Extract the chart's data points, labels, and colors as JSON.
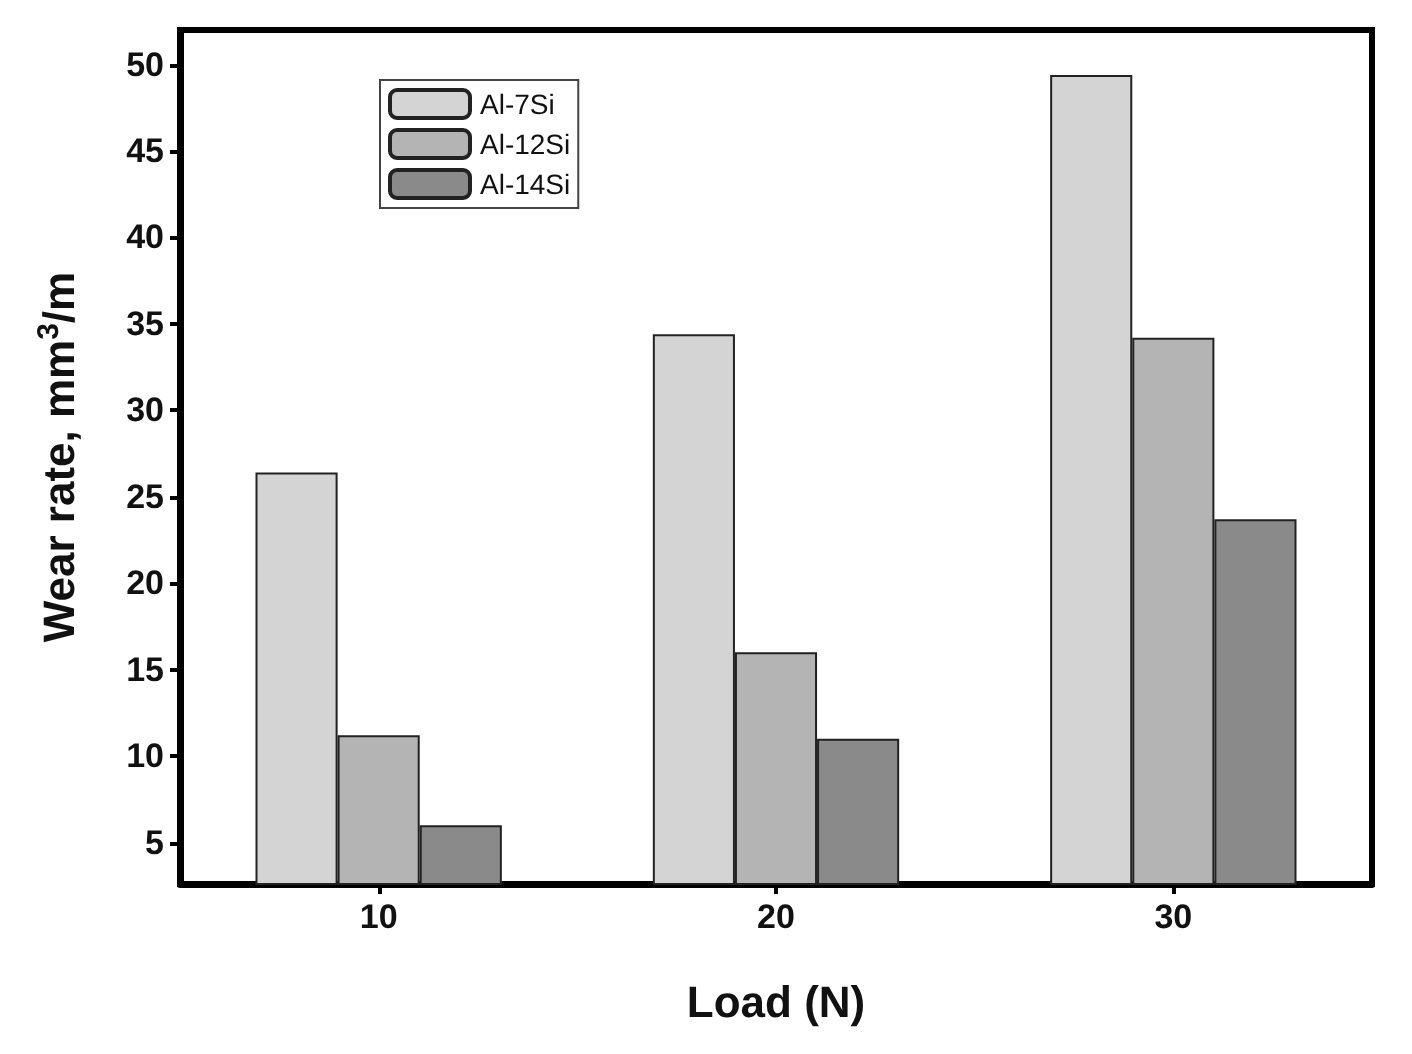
{
  "chart_data": {
    "type": "bar",
    "xlabel": "Load (N)",
    "ylabel": "Wear rate, mm$^{3}$/m",
    "categories": [
      "10",
      "20",
      "30"
    ],
    "series": [
      {
        "name": "Al-7Si",
        "color": "#d4d4d4",
        "values": [
          26.4,
          34.4,
          49.4
        ]
      },
      {
        "name": "Al-12Si",
        "color": "#b4b4b4",
        "values": [
          11.2,
          16.0,
          34.2
        ]
      },
      {
        "name": "Al-14Si",
        "color": "#8a8a8a",
        "values": [
          6.0,
          11.0,
          23.7
        ]
      }
    ],
    "ylim": [
      2.6,
      52
    ],
    "yticks": [
      5,
      10,
      15,
      20,
      25,
      30,
      35,
      40,
      45,
      50
    ],
    "grid": false,
    "legend": "top left"
  }
}
